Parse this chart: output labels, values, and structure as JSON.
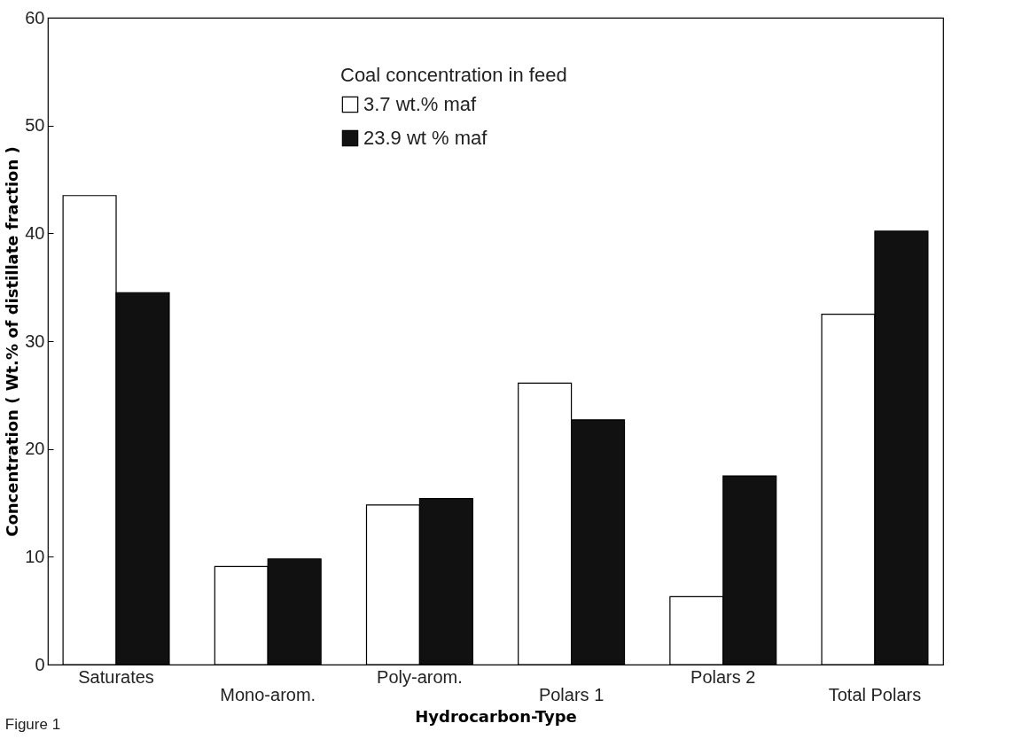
{
  "chart_data": {
    "type": "bar",
    "xlabel": "Hydrocarbon-Type",
    "ylabel": "Concentration ( Wt.% of distillate fraction )",
    "legend_title": "Coal concentration in feed",
    "annotations": [
      "Figure 1"
    ],
    "categories": [
      "Saturates",
      "Mono-arom.",
      "Poly-arom.",
      "Polars 1",
      "Polars 2",
      "Total Polars"
    ],
    "series": [
      {
        "name": "3.7 wt.% maf",
        "color": "#ffffff",
        "values": [
          43.5,
          9.1,
          14.8,
          26.1,
          6.3,
          32.5
        ]
      },
      {
        "name": "23.9 wt % maf",
        "color": "#111111",
        "values": [
          34.5,
          9.8,
          15.4,
          22.7,
          17.5,
          40.2
        ]
      }
    ],
    "ylim": [
      0,
      60
    ],
    "yticks": [
      0,
      10,
      20,
      30,
      40,
      50,
      60
    ],
    "grid": false,
    "legend": "top"
  }
}
